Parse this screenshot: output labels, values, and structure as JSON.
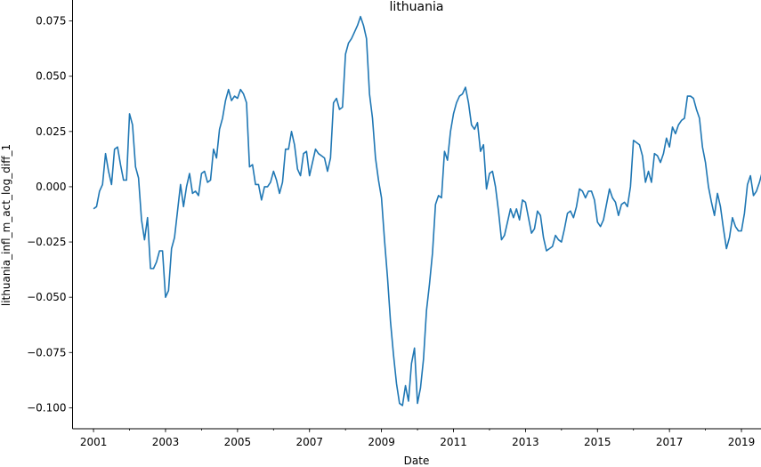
{
  "chart_data": {
    "type": "line",
    "title": "lithuania",
    "xlabel": "Date",
    "ylabel": "lithuania_infl_m_act_log_diff_1",
    "xlim": [
      "2000-06-01",
      "2019-09-01"
    ],
    "ylim": [
      -0.1095,
      0.0845
    ],
    "x_ticks": [
      {
        "date": "2001-01-01",
        "label": "2001"
      },
      {
        "date": "2003-01-01",
        "label": "2003"
      },
      {
        "date": "2005-01-01",
        "label": "2005"
      },
      {
        "date": "2007-01-01",
        "label": "2007"
      },
      {
        "date": "2009-01-01",
        "label": "2009"
      },
      {
        "date": "2011-01-01",
        "label": "2011"
      },
      {
        "date": "2013-01-01",
        "label": "2013"
      },
      {
        "date": "2015-01-01",
        "label": "2015"
      },
      {
        "date": "2017-01-01",
        "label": "2017"
      },
      {
        "date": "2019-01-01",
        "label": "2019"
      }
    ],
    "y_ticks": [
      {
        "value": 0.075,
        "label": "0.075"
      },
      {
        "value": 0.05,
        "label": "0.050"
      },
      {
        "value": 0.025,
        "label": "0.025"
      },
      {
        "value": 0.0,
        "label": "0.000"
      },
      {
        "value": -0.025,
        "label": "−0.025"
      },
      {
        "value": -0.05,
        "label": "−0.050"
      },
      {
        "value": -0.075,
        "label": "−0.075"
      },
      {
        "value": -0.1,
        "label": "−0.100"
      }
    ],
    "grid": false,
    "series": [
      {
        "color": "#1f77b4",
        "start": "2001-01",
        "frequency": "monthly",
        "values": [
          -0.01,
          -0.009,
          -0.002,
          0.001,
          0.015,
          0.007,
          0.001,
          0.017,
          0.018,
          0.01,
          0.003,
          0.003,
          0.033,
          0.028,
          0.009,
          0.004,
          -0.015,
          -0.024,
          -0.014,
          -0.037,
          -0.037,
          -0.034,
          -0.029,
          -0.029,
          -0.05,
          -0.047,
          -0.028,
          -0.023,
          -0.011,
          0.001,
          -0.009,
          0.0,
          0.006,
          -0.003,
          -0.002,
          -0.004,
          0.006,
          0.007,
          0.002,
          0.003,
          0.017,
          0.013,
          0.026,
          0.031,
          0.039,
          0.044,
          0.039,
          0.041,
          0.04,
          0.044,
          0.042,
          0.038,
          0.009,
          0.01,
          0.001,
          0.001,
          -0.006,
          0.0,
          0.0,
          0.002,
          0.007,
          0.003,
          -0.003,
          0.002,
          0.017,
          0.017,
          0.025,
          0.019,
          0.008,
          0.005,
          0.015,
          0.016,
          0.005,
          0.011,
          0.017,
          0.015,
          0.014,
          0.013,
          0.007,
          0.013,
          0.038,
          0.04,
          0.035,
          0.036,
          0.06,
          0.065,
          0.067,
          0.07,
          0.073,
          0.077,
          0.073,
          0.067,
          0.042,
          0.031,
          0.013,
          0.003,
          -0.005,
          -0.024,
          -0.041,
          -0.061,
          -0.076,
          -0.089,
          -0.098,
          -0.099,
          -0.09,
          -0.097,
          -0.08,
          -0.073,
          -0.098,
          -0.091,
          -0.078,
          -0.056,
          -0.044,
          -0.03,
          -0.008,
          -0.004,
          -0.005,
          0.016,
          0.012,
          0.025,
          0.033,
          0.038,
          0.041,
          0.042,
          0.045,
          0.038,
          0.028,
          0.026,
          0.029,
          0.016,
          0.019,
          -0.001,
          0.006,
          0.007,
          0.0,
          -0.011,
          -0.024,
          -0.022,
          -0.016,
          -0.01,
          -0.014,
          -0.01,
          -0.015,
          -0.006,
          -0.007,
          -0.014,
          -0.021,
          -0.019,
          -0.011,
          -0.013,
          -0.023,
          -0.029,
          -0.028,
          -0.027,
          -0.022,
          -0.024,
          -0.025,
          -0.019,
          -0.012,
          -0.011,
          -0.014,
          -0.009,
          -0.001,
          -0.002,
          -0.005,
          -0.002,
          -0.002,
          -0.006,
          -0.016,
          -0.018,
          -0.015,
          -0.008,
          -0.001,
          -0.005,
          -0.007,
          -0.013,
          -0.008,
          -0.007,
          -0.009,
          0.0,
          0.021,
          0.02,
          0.019,
          0.014,
          0.002,
          0.007,
          0.002,
          0.015,
          0.014,
          0.011,
          0.015,
          0.022,
          0.018,
          0.027,
          0.024,
          0.028,
          0.03,
          0.031,
          0.041,
          0.041,
          0.04,
          0.035,
          0.031,
          0.018,
          0.011,
          0.0,
          -0.007,
          -0.013,
          -0.003,
          -0.009,
          -0.019,
          -0.028,
          -0.023,
          -0.014,
          -0.018,
          -0.02,
          -0.02,
          -0.012,
          0.001,
          0.005,
          -0.004,
          -0.002,
          0.002,
          0.007,
          -0.003,
          -0.012
        ]
      }
    ]
  }
}
